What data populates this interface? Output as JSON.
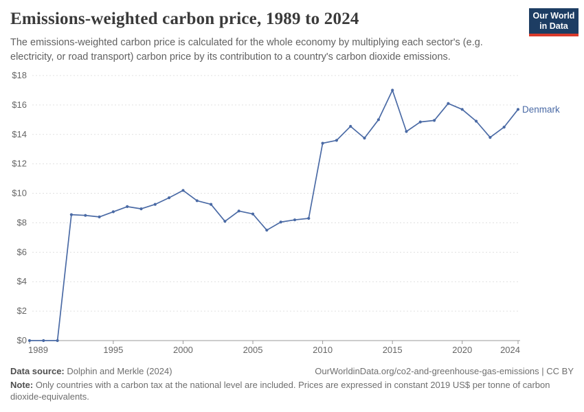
{
  "header": {
    "title": "Emissions-weighted carbon price, 1989 to 2024",
    "subtitle": "The emissions-weighted carbon price is calculated for the whole economy by multiplying each sector's (e.g.\nelectricity, or road transport) carbon price by its contribution to a country's carbon dioxide emissions.",
    "logo": {
      "line1": "Our World",
      "line2": "in Data"
    }
  },
  "chart_data": {
    "type": "line",
    "title": "Emissions-weighted carbon price, 1989 to 2024",
    "xlabel": "",
    "ylabel": "",
    "x": [
      1989,
      1990,
      1991,
      1992,
      1993,
      1994,
      1995,
      1996,
      1997,
      1998,
      1999,
      2000,
      2001,
      2002,
      2003,
      2004,
      2005,
      2006,
      2007,
      2008,
      2009,
      2010,
      2011,
      2012,
      2013,
      2014,
      2015,
      2016,
      2017,
      2018,
      2019,
      2020,
      2021,
      2022,
      2023,
      2024
    ],
    "series": [
      {
        "name": "Denmark",
        "color": "#4a6aa5",
        "values": [
          0,
          0,
          0,
          8.55,
          8.5,
          8.4,
          8.75,
          9.1,
          8.95,
          9.25,
          9.7,
          10.2,
          9.5,
          9.25,
          8.1,
          8.8,
          8.6,
          7.5,
          8.05,
          8.2,
          8.3,
          13.4,
          13.6,
          14.55,
          13.75,
          15.0,
          17.0,
          14.2,
          14.85,
          14.95,
          16.1,
          15.7,
          14.9,
          13.8,
          14.5,
          15.7
        ]
      }
    ],
    "x_ticks": [
      1989,
      1995,
      2000,
      2005,
      2010,
      2015,
      2020,
      2024
    ],
    "y_ticks": [
      0,
      2,
      4,
      6,
      8,
      10,
      12,
      14,
      16,
      18
    ],
    "y_prefix": "$",
    "xlim": [
      1989,
      2024
    ],
    "ylim": [
      0,
      18
    ],
    "grid": "horizontal-dashed",
    "legend_position": "end-of-line-label",
    "entity_label": "Denmark"
  },
  "footer": {
    "datasource_label": "Data source:",
    "datasource_value": " Dolphin and Merkle (2024)",
    "url_text": "OurWorldinData.org/co2-and-greenhouse-gas-emissions | CC BY",
    "note_label": "Note:",
    "note_value": " Only countries with a carbon tax at the national level are included. Prices are expressed in constant 2019 US$ per tonne of carbon\ndioxide-equivalents."
  },
  "colors": {
    "line": "#4a6aa5",
    "grid": "#e0e0e0",
    "axis": "#999999",
    "tick_label": "#666666",
    "title_text": "#3a3a3a",
    "subtitle_text": "#616161",
    "logo_bg": "#1d3d63",
    "logo_accent": "#d93a2b"
  }
}
